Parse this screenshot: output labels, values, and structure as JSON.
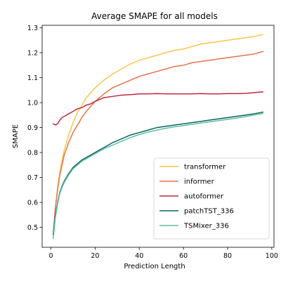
{
  "chart_data": {
    "type": "line",
    "title": "Average SMAPE for all models",
    "xlabel": "Prediction Length",
    "ylabel": "SMAPE",
    "xlim": [
      -4,
      101
    ],
    "ylim": [
      0.42,
      1.31
    ],
    "xticks": [
      0,
      20,
      40,
      60,
      80,
      100
    ],
    "yticks": [
      0.5,
      0.6,
      0.7,
      0.8,
      0.9,
      1.0,
      1.1,
      1.2,
      1.3
    ],
    "ytick_labels": [
      "0.5",
      "0.6",
      "0.7",
      "0.8",
      "0.9",
      "1.0",
      "1.1",
      "1.2",
      "1.3"
    ],
    "grid": false,
    "legend_position": "lower-right",
    "x": [
      1,
      2,
      3,
      4,
      5,
      6,
      8,
      10,
      12,
      14,
      16,
      18,
      20,
      24,
      28,
      32,
      36,
      40,
      44,
      48,
      52,
      56,
      60,
      64,
      68,
      72,
      76,
      80,
      84,
      88,
      92,
      96
    ],
    "series": [
      {
        "name": "transformer",
        "color": "#fcc44d",
        "values": [
          0.47,
          0.58,
          0.66,
          0.72,
          0.77,
          0.81,
          0.87,
          0.92,
          0.96,
          0.99,
          1.02,
          1.04,
          1.06,
          1.09,
          1.115,
          1.135,
          1.155,
          1.17,
          1.18,
          1.19,
          1.2,
          1.21,
          1.215,
          1.225,
          1.235,
          1.24,
          1.245,
          1.25,
          1.255,
          1.26,
          1.265,
          1.273
        ]
      },
      {
        "name": "informer",
        "color": "#e5734a",
        "values": [
          0.47,
          0.58,
          0.65,
          0.71,
          0.75,
          0.79,
          0.84,
          0.88,
          0.91,
          0.94,
          0.965,
          0.985,
          1.005,
          1.035,
          1.06,
          1.075,
          1.09,
          1.105,
          1.115,
          1.125,
          1.135,
          1.145,
          1.15,
          1.16,
          1.165,
          1.17,
          1.175,
          1.18,
          1.185,
          1.19,
          1.195,
          1.205
        ]
      },
      {
        "name": "autoformer",
        "color": "#c0283f",
        "values": [
          0.915,
          0.91,
          0.915,
          0.93,
          0.94,
          0.945,
          0.955,
          0.965,
          0.975,
          0.98,
          0.99,
          0.995,
          1.005,
          1.02,
          1.025,
          1.03,
          1.032,
          1.035,
          1.035,
          1.036,
          1.035,
          1.035,
          1.035,
          1.035,
          1.036,
          1.035,
          1.035,
          1.036,
          1.036,
          1.037,
          1.04,
          1.043
        ]
      },
      {
        "name": "patchTST_336",
        "color": "#0b6463",
        "values": [
          0.47,
          0.55,
          0.6,
          0.64,
          0.665,
          0.685,
          0.715,
          0.74,
          0.755,
          0.77,
          0.78,
          0.79,
          0.8,
          0.82,
          0.84,
          0.855,
          0.87,
          0.88,
          0.89,
          0.9,
          0.905,
          0.91,
          0.915,
          0.92,
          0.925,
          0.93,
          0.935,
          0.94,
          0.945,
          0.95,
          0.955,
          0.962
        ]
      },
      {
        "name": "TSMixer_336",
        "color": "#5fbf9f",
        "values": [
          0.455,
          0.54,
          0.595,
          0.635,
          0.66,
          0.68,
          0.71,
          0.735,
          0.75,
          0.765,
          0.775,
          0.785,
          0.795,
          0.815,
          0.83,
          0.845,
          0.86,
          0.872,
          0.882,
          0.89,
          0.897,
          0.903,
          0.908,
          0.913,
          0.918,
          0.923,
          0.928,
          0.933,
          0.938,
          0.944,
          0.95,
          0.957
        ]
      }
    ]
  }
}
